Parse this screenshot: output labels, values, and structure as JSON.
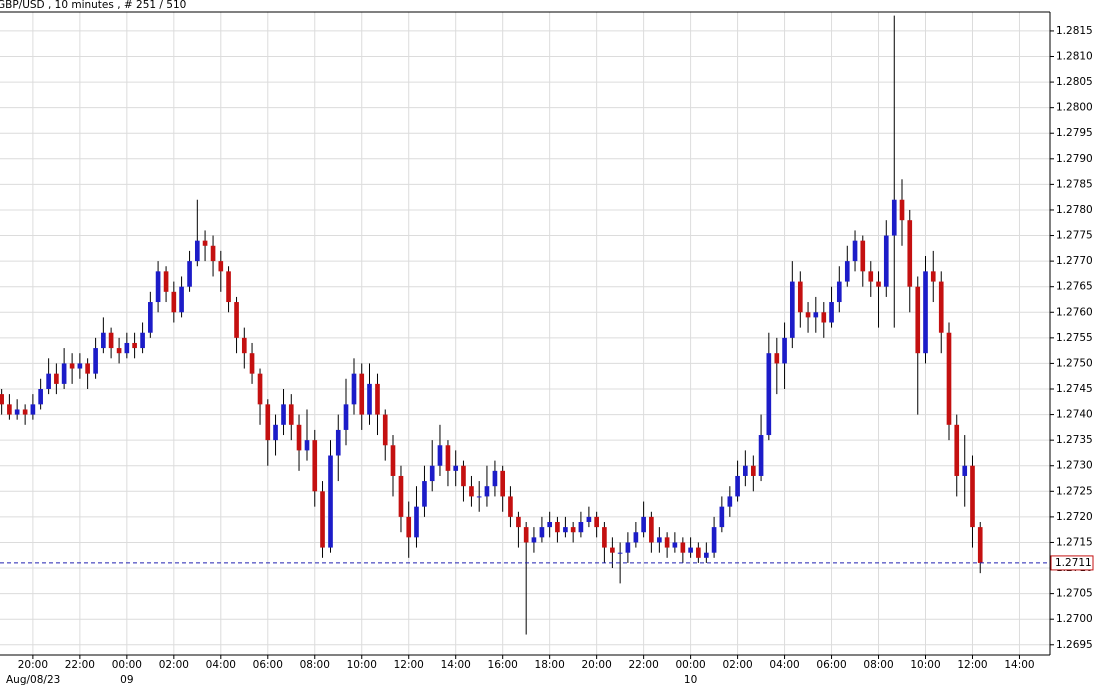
{
  "chart_data": {
    "type": "candlestick",
    "title": "GBP/USD , 10 minutes , # 251 / 510",
    "up_color": "#1c1cc8",
    "down_color": "#c41010",
    "grid": true,
    "last_price": 1.2711,
    "last_line_color": "#2020b0",
    "xlim": [
      18.6,
      63.3
    ],
    "xticks": [
      {
        "value": 20,
        "label": "20:00"
      },
      {
        "value": 22,
        "label": "22:00"
      },
      {
        "value": 24,
        "label": "00:00"
      },
      {
        "value": 26,
        "label": "02:00"
      },
      {
        "value": 28,
        "label": "04:00"
      },
      {
        "value": 30,
        "label": "06:00"
      },
      {
        "value": 32,
        "label": "08:00"
      },
      {
        "value": 34,
        "label": "10:00"
      },
      {
        "value": 36,
        "label": "12:00"
      },
      {
        "value": 38,
        "label": "14:00"
      },
      {
        "value": 40,
        "label": "16:00"
      },
      {
        "value": 42,
        "label": "18:00"
      },
      {
        "value": 44,
        "label": "20:00"
      },
      {
        "value": 46,
        "label": "22:00"
      },
      {
        "value": 48,
        "label": "00:00"
      },
      {
        "value": 50,
        "label": "02:00"
      },
      {
        "value": 52,
        "label": "04:00"
      },
      {
        "value": 54,
        "label": "06:00"
      },
      {
        "value": 56,
        "label": "08:00"
      },
      {
        "value": 58,
        "label": "10:00"
      },
      {
        "value": 60,
        "label": "12:00"
      },
      {
        "value": 62,
        "label": "14:00"
      }
    ],
    "date_ticks": [
      {
        "value": 18.6,
        "label": "Aug/08/23"
      },
      {
        "value": 24,
        "label": "09"
      },
      {
        "value": 48,
        "label": "10"
      }
    ],
    "ylim": [
      1.2693,
      1.28187
    ],
    "yticks": [
      1.2695,
      {
        "value": 1.27,
        "label": "1.2700"
      },
      1.2705,
      {
        "value": 1.271,
        "label": "1.2710"
      },
      1.2715,
      {
        "value": 1.272,
        "label": "1.2720"
      },
      1.2725,
      {
        "value": 1.273,
        "label": "1.2730"
      },
      1.2735,
      {
        "value": 1.274,
        "label": "1.2740"
      },
      1.2745,
      {
        "value": 1.275,
        "label": "1.2750"
      },
      1.2755,
      {
        "value": 1.276,
        "label": "1.2760"
      },
      1.2765,
      {
        "value": 1.277,
        "label": "1.2770"
      },
      1.2775,
      {
        "value": 1.278,
        "label": "1.2780"
      },
      1.2785,
      {
        "value": 1.279,
        "label": "1.2790"
      },
      1.2795,
      {
        "value": 1.28,
        "label": "1.2800"
      },
      1.2805,
      {
        "value": 1.281,
        "label": "1.2810"
      },
      1.2815
    ],
    "x": [
      18.67,
      19,
      19.33,
      19.67,
      20,
      20.33,
      20.67,
      21,
      21.33,
      21.67,
      22,
      22.33,
      22.67,
      23,
      23.33,
      23.67,
      24,
      24.33,
      24.67,
      25,
      25.33,
      25.67,
      26,
      26.33,
      26.67,
      27,
      27.33,
      27.67,
      28,
      28.33,
      28.67,
      29,
      29.33,
      29.67,
      30,
      30.33,
      30.67,
      31,
      31.33,
      31.67,
      32,
      32.33,
      32.67,
      33,
      33.33,
      33.67,
      34,
      34.33,
      34.67,
      35,
      35.33,
      35.67,
      36,
      36.33,
      36.67,
      37,
      37.33,
      37.67,
      38,
      38.33,
      38.67,
      39,
      39.33,
      39.67,
      40,
      40.33,
      40.67,
      41,
      41.33,
      41.67,
      42,
      42.33,
      42.67,
      43,
      43.33,
      43.67,
      44,
      44.33,
      44.67,
      45,
      45.33,
      45.67,
      46,
      46.33,
      46.67,
      47,
      47.33,
      47.67,
      48,
      48.33,
      48.67,
      49,
      49.33,
      49.67,
      50,
      50.33,
      50.67,
      51,
      51.33,
      51.67,
      52,
      52.33,
      52.67,
      53,
      53.33,
      53.67,
      54,
      54.33,
      54.67,
      55,
      55.33,
      55.67,
      56,
      56.33,
      56.67,
      57,
      57.33,
      57.67,
      58,
      58.33,
      58.67,
      59,
      59.33,
      59.67,
      60,
      60.33
    ],
    "ohlc": [
      [
        1.2744,
        1.2745,
        1.274,
        1.2742
      ],
      [
        1.2742,
        1.2744,
        1.2739,
        1.274
      ],
      [
        1.274,
        1.2743,
        1.2739,
        1.2741
      ],
      [
        1.2741,
        1.2742,
        1.2738,
        1.274
      ],
      [
        1.274,
        1.2744,
        1.2739,
        1.2742
      ],
      [
        1.2742,
        1.2747,
        1.2741,
        1.2745
      ],
      [
        1.2745,
        1.2751,
        1.2744,
        1.2748
      ],
      [
        1.2748,
        1.275,
        1.2744,
        1.2746
      ],
      [
        1.2746,
        1.2753,
        1.2745,
        1.275
      ],
      [
        1.275,
        1.2752,
        1.2746,
        1.2749
      ],
      [
        1.2749,
        1.2752,
        1.2747,
        1.275
      ],
      [
        1.275,
        1.2751,
        1.2745,
        1.2748
      ],
      [
        1.2748,
        1.2755,
        1.2747,
        1.2753
      ],
      [
        1.2753,
        1.2759,
        1.2752,
        1.2756
      ],
      [
        1.2756,
        1.2757,
        1.2751,
        1.2753
      ],
      [
        1.2753,
        1.2755,
        1.275,
        1.2752
      ],
      [
        1.2752,
        1.2756,
        1.2751,
        1.2754
      ],
      [
        1.2754,
        1.2756,
        1.2751,
        1.2753
      ],
      [
        1.2753,
        1.2758,
        1.2752,
        1.2756
      ],
      [
        1.2756,
        1.2764,
        1.2755,
        1.2762
      ],
      [
        1.2762,
        1.277,
        1.276,
        1.2768
      ],
      [
        1.2768,
        1.2769,
        1.2762,
        1.2764
      ],
      [
        1.2764,
        1.2766,
        1.2758,
        1.276
      ],
      [
        1.276,
        1.2767,
        1.2759,
        1.2765
      ],
      [
        1.2765,
        1.2772,
        1.2764,
        1.277
      ],
      [
        1.277,
        1.2782,
        1.2769,
        1.2774
      ],
      [
        1.2774,
        1.2776,
        1.277,
        1.2773
      ],
      [
        1.2773,
        1.2775,
        1.2767,
        1.277
      ],
      [
        1.277,
        1.2772,
        1.2764,
        1.2768
      ],
      [
        1.2768,
        1.2769,
        1.276,
        1.2762
      ],
      [
        1.2762,
        1.2763,
        1.2752,
        1.2755
      ],
      [
        1.2755,
        1.2757,
        1.2749,
        1.2752
      ],
      [
        1.2752,
        1.2754,
        1.2746,
        1.2748
      ],
      [
        1.2748,
        1.2749,
        1.2738,
        1.2742
      ],
      [
        1.2742,
        1.2743,
        1.273,
        1.2735
      ],
      [
        1.2735,
        1.274,
        1.2732,
        1.2738
      ],
      [
        1.2738,
        1.2745,
        1.2736,
        1.2742
      ],
      [
        1.2742,
        1.2744,
        1.2735,
        1.2738
      ],
      [
        1.2738,
        1.274,
        1.2729,
        1.2733
      ],
      [
        1.2733,
        1.2741,
        1.2731,
        1.2735
      ],
      [
        1.2735,
        1.2737,
        1.2722,
        1.2725
      ],
      [
        1.2725,
        1.2727,
        1.2712,
        1.2714
      ],
      [
        1.2714,
        1.2735,
        1.2713,
        1.2732
      ],
      [
        1.2732,
        1.274,
        1.2727,
        1.2737
      ],
      [
        1.2737,
        1.2747,
        1.2734,
        1.2742
      ],
      [
        1.2742,
        1.2751,
        1.274,
        1.2748
      ],
      [
        1.2748,
        1.275,
        1.2737,
        1.274
      ],
      [
        1.274,
        1.275,
        1.2738,
        1.2746
      ],
      [
        1.2746,
        1.2748,
        1.2736,
        1.274
      ],
      [
        1.274,
        1.2741,
        1.2731,
        1.2734
      ],
      [
        1.2734,
        1.2736,
        1.2724,
        1.2728
      ],
      [
        1.2728,
        1.273,
        1.2717,
        1.272
      ],
      [
        1.272,
        1.2723,
        1.2712,
        1.2716
      ],
      [
        1.2716,
        1.2726,
        1.2714,
        1.2722
      ],
      [
        1.2722,
        1.273,
        1.272,
        1.2727
      ],
      [
        1.2727,
        1.2735,
        1.2725,
        1.273
      ],
      [
        1.273,
        1.2738,
        1.2728,
        1.2734
      ],
      [
        1.2734,
        1.2735,
        1.2726,
        1.2729
      ],
      [
        1.2729,
        1.2733,
        1.2726,
        1.273
      ],
      [
        1.273,
        1.2731,
        1.2723,
        1.2726
      ],
      [
        1.2726,
        1.2728,
        1.2722,
        1.2724
      ],
      [
        1.2724,
        1.2727,
        1.2721,
        1.2724
      ],
      [
        1.2724,
        1.273,
        1.2722,
        1.2726
      ],
      [
        1.2726,
        1.2731,
        1.2724,
        1.2729
      ],
      [
        1.2729,
        1.273,
        1.2721,
        1.2724
      ],
      [
        1.2724,
        1.2726,
        1.2718,
        1.272
      ],
      [
        1.272,
        1.2721,
        1.2714,
        1.2718
      ],
      [
        1.2718,
        1.2719,
        1.2697,
        1.2715
      ],
      [
        1.2715,
        1.2718,
        1.2713,
        1.2716
      ],
      [
        1.2716,
        1.272,
        1.2715,
        1.2718
      ],
      [
        1.2718,
        1.2721,
        1.2716,
        1.2719
      ],
      [
        1.2719,
        1.272,
        1.2715,
        1.2717
      ],
      [
        1.2717,
        1.272,
        1.2716,
        1.2718
      ],
      [
        1.2718,
        1.2719,
        1.2715,
        1.2717
      ],
      [
        1.2717,
        1.2721,
        1.2716,
        1.2719
      ],
      [
        1.2719,
        1.2722,
        1.2718,
        1.272
      ],
      [
        1.272,
        1.2721,
        1.2716,
        1.2718
      ],
      [
        1.2718,
        1.2719,
        1.2711,
        1.2714
      ],
      [
        1.2714,
        1.2716,
        1.271,
        1.2713
      ],
      [
        1.2713,
        1.2715,
        1.2707,
        1.2713
      ],
      [
        1.2713,
        1.2717,
        1.2711,
        1.2715
      ],
      [
        1.2715,
        1.2719,
        1.2714,
        1.2717
      ],
      [
        1.2717,
        1.2723,
        1.2716,
        1.272
      ],
      [
        1.272,
        1.2721,
        1.2713,
        1.2715
      ],
      [
        1.2715,
        1.2718,
        1.2713,
        1.2716
      ],
      [
        1.2716,
        1.2717,
        1.2712,
        1.2714
      ],
      [
        1.2714,
        1.2717,
        1.2713,
        1.2715
      ],
      [
        1.2715,
        1.2716,
        1.2711,
        1.2713
      ],
      [
        1.2713,
        1.2716,
        1.2712,
        1.2714
      ],
      [
        1.2714,
        1.2715,
        1.2711,
        1.2712
      ],
      [
        1.2712,
        1.2715,
        1.2711,
        1.2713
      ],
      [
        1.2713,
        1.272,
        1.2712,
        1.2718
      ],
      [
        1.2718,
        1.2724,
        1.2717,
        1.2722
      ],
      [
        1.2722,
        1.2726,
        1.272,
        1.2724
      ],
      [
        1.2724,
        1.2731,
        1.2723,
        1.2728
      ],
      [
        1.2728,
        1.2733,
        1.2726,
        1.273
      ],
      [
        1.273,
        1.2732,
        1.2725,
        1.2728
      ],
      [
        1.2728,
        1.274,
        1.2727,
        1.2736
      ],
      [
        1.2736,
        1.2756,
        1.2735,
        1.2752
      ],
      [
        1.2752,
        1.2755,
        1.2744,
        1.275
      ],
      [
        1.275,
        1.2758,
        1.2745,
        1.2755
      ],
      [
        1.2755,
        1.277,
        1.2753,
        1.2766
      ],
      [
        1.2766,
        1.2768,
        1.2757,
        1.276
      ],
      [
        1.276,
        1.2762,
        1.2756,
        1.2759
      ],
      [
        1.2759,
        1.2763,
        1.2756,
        1.276
      ],
      [
        1.276,
        1.2762,
        1.2755,
        1.2758
      ],
      [
        1.2758,
        1.2765,
        1.2757,
        1.2762
      ],
      [
        1.2762,
        1.2769,
        1.276,
        1.2766
      ],
      [
        1.2766,
        1.2773,
        1.2765,
        1.277
      ],
      [
        1.277,
        1.2776,
        1.2768,
        1.2774
      ],
      [
        1.2774,
        1.2775,
        1.2765,
        1.2768
      ],
      [
        1.2768,
        1.277,
        1.2763,
        1.2766
      ],
      [
        1.2766,
        1.2768,
        1.2757,
        1.2765
      ],
      [
        1.2765,
        1.2778,
        1.2763,
        1.2775
      ],
      [
        1.2775,
        1.2818,
        1.2757,
        1.2782
      ],
      [
        1.2782,
        1.2786,
        1.2773,
        1.2778
      ],
      [
        1.2778,
        1.278,
        1.276,
        1.2765
      ],
      [
        1.2765,
        1.2767,
        1.274,
        1.2752
      ],
      [
        1.2752,
        1.2771,
        1.275,
        1.2768
      ],
      [
        1.2768,
        1.2772,
        1.2762,
        1.2766
      ],
      [
        1.2766,
        1.2768,
        1.2752,
        1.2756
      ],
      [
        1.2756,
        1.2758,
        1.2735,
        1.2738
      ],
      [
        1.2738,
        1.274,
        1.2724,
        1.2728
      ],
      [
        1.2728,
        1.2736,
        1.2722,
        1.273
      ],
      [
        1.273,
        1.2732,
        1.2714,
        1.2718
      ],
      [
        1.2718,
        1.2719,
        1.2709,
        1.2711
      ]
    ]
  }
}
